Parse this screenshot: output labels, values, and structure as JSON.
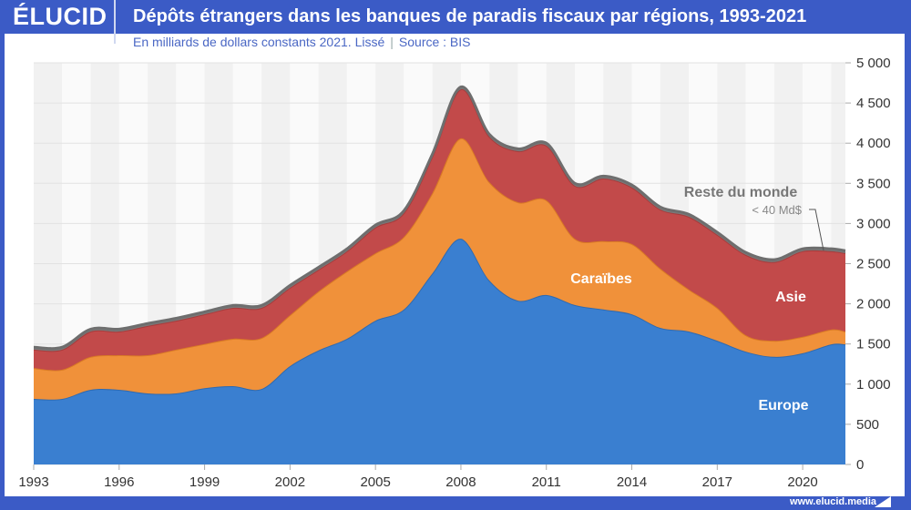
{
  "header": {
    "logo": "ÉLUCID",
    "title": "Dépôts étrangers dans les banques de paradis fiscaux par régions, 1993-2021"
  },
  "subtitle": {
    "text": "En milliards de dollars constants 2021. Lissé",
    "source": "Source : BIS"
  },
  "footer": {
    "url": "www.elucid.media"
  },
  "chart_data": {
    "type": "area",
    "stacked": true,
    "title": "Dépôts étrangers dans les banques de paradis fiscaux par régions, 1993-2021",
    "xlim": [
      1993,
      2021.5
    ],
    "ylim": [
      0,
      5000
    ],
    "yaxis_position": "right",
    "x_ticks": [
      1993,
      1996,
      1999,
      2002,
      2005,
      2008,
      2011,
      2014,
      2017,
      2020
    ],
    "y_ticks": [
      0,
      500,
      1000,
      1500,
      2000,
      2500,
      3000,
      3500,
      4000,
      4500,
      5000
    ],
    "y_tick_labels": [
      "0",
      "500",
      "1 000",
      "1 500",
      "2 000",
      "2 500",
      "3 000",
      "3 500",
      "4 000",
      "4 500",
      "5 000"
    ],
    "x": [
      1993,
      1994,
      1995,
      1996,
      1997,
      1998,
      1999,
      2000,
      2001,
      2002,
      2003,
      2004,
      2005,
      2006,
      2007,
      2008,
      2009,
      2010,
      2011,
      2012,
      2013,
      2014,
      2015,
      2016,
      2017,
      2018,
      2019,
      2020,
      2021,
      2021.5
    ],
    "series": [
      {
        "name": "Europe",
        "color": "#3a7fd0",
        "values": [
          816,
          816,
          930,
          930,
          885,
          885,
          950,
          975,
          940,
          1225,
          1420,
          1565,
          1790,
          1930,
          2380,
          2810,
          2290,
          2040,
          2110,
          1985,
          1930,
          1870,
          1700,
          1655,
          1540,
          1405,
          1340,
          1385,
          1495,
          1495
        ]
      },
      {
        "name": "Caraïbes",
        "color": "#f0913a",
        "values": [
          384,
          364,
          410,
          430,
          475,
          545,
          550,
          590,
          635,
          635,
          735,
          840,
          840,
          905,
          1000,
          1250,
          1225,
          1225,
          1180,
          825,
          850,
          875,
          740,
          525,
          410,
          205,
          200,
          205,
          185,
          160
        ]
      },
      {
        "name": "Asie",
        "color": "#c24a4a",
        "values": [
          230,
          250,
          315,
          295,
          365,
          360,
          370,
          385,
          375,
          340,
          270,
          250,
          320,
          295,
          455,
          610,
          565,
          635,
          680,
          660,
          780,
          705,
          735,
          905,
          910,
          1000,
          980,
          1065,
          975,
          975
        ]
      },
      {
        "name": "Reste du monde",
        "color": "#7a7a7a",
        "values": [
          30,
          30,
          30,
          30,
          30,
          30,
          30,
          30,
          30,
          30,
          30,
          30,
          30,
          30,
          30,
          30,
          30,
          30,
          30,
          30,
          30,
          30,
          30,
          30,
          30,
          30,
          30,
          30,
          30,
          30
        ]
      }
    ],
    "annotations": {
      "rest_note": "< 40 Md$"
    },
    "grid": true
  }
}
